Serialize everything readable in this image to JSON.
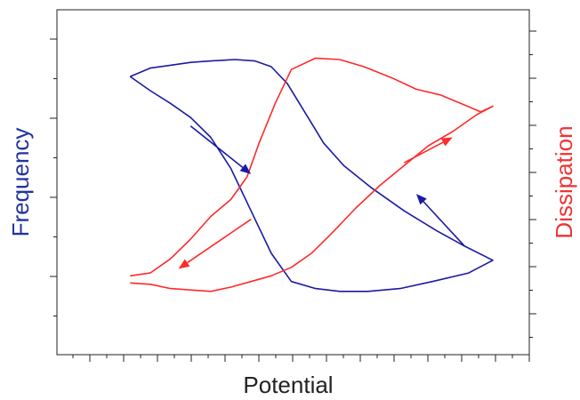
{
  "chart_data": {
    "type": "line",
    "title": "",
    "xlabel": "Potential",
    "ylabel_left": "Frequency",
    "ylabel_right": "Dissipation",
    "grid": false,
    "legend": "none",
    "xlim": [
      0,
      10
    ],
    "ylim_left": [
      0,
      10
    ],
    "ylim_right": [
      0,
      10
    ],
    "colors": {
      "frequency": "#1a1aa6",
      "dissipation": "#ff2a2a",
      "axis": "#222222",
      "frequency_label": "#2233a0",
      "dissipation_label": "#ee3333"
    },
    "series": [
      {
        "axis": "left",
        "color": "#1a1aa6",
        "x": [
          1.0,
          1.5,
          2.0,
          2.5,
          3.0,
          3.6,
          4.1,
          4.5,
          4.9,
          5.2,
          5.5,
          5.8,
          6.3,
          7.0,
          7.8,
          8.6,
          9.3,
          10.0,
          9.4,
          8.5,
          7.7,
          6.9,
          6.2,
          5.6,
          5.0,
          4.5,
          4.0,
          3.5,
          3.0,
          2.5,
          2.0,
          1.5,
          1.0
        ],
        "y": [
          8.55,
          8.85,
          8.95,
          9.05,
          9.1,
          9.15,
          9.1,
          8.9,
          8.3,
          7.6,
          6.9,
          6.2,
          5.4,
          4.6,
          3.8,
          3.1,
          2.55,
          2.05,
          1.6,
          1.3,
          1.05,
          0.95,
          0.95,
          1.05,
          1.3,
          2.3,
          3.8,
          5.3,
          6.4,
          7.1,
          7.6,
          8.05,
          8.55
        ]
      },
      {
        "axis": "right",
        "color": "#ff2a2a",
        "x": [
          1.0,
          1.5,
          2.0,
          2.5,
          3.0,
          3.5,
          3.9,
          4.2,
          4.6,
          5.0,
          5.6,
          6.2,
          6.8,
          7.5,
          8.1,
          8.7,
          9.2,
          9.7,
          10.0,
          9.6,
          9.0,
          8.4,
          7.8,
          7.2,
          6.6,
          6.0,
          5.5,
          5.0,
          4.5,
          4.0,
          3.5,
          3.0,
          2.5,
          2.0,
          1.5,
          1.0
        ],
        "y": [
          1.5,
          1.6,
          2.1,
          2.8,
          3.6,
          4.2,
          5.0,
          6.2,
          7.6,
          8.8,
          9.2,
          9.15,
          8.9,
          8.5,
          8.1,
          7.9,
          7.6,
          7.3,
          7.5,
          7.2,
          6.6,
          6.1,
          5.4,
          4.7,
          3.9,
          3.0,
          2.3,
          1.8,
          1.5,
          1.3,
          1.1,
          0.95,
          1.0,
          1.05,
          1.2,
          1.25
        ]
      }
    ],
    "arrows": [
      {
        "color": "#1a1aa6",
        "from": [
          2.5,
          6.8
        ],
        "to": [
          4.0,
          5.1
        ]
      },
      {
        "color": "#1a1aa6",
        "from": [
          9.3,
          2.55
        ],
        "to": [
          8.1,
          4.4
        ]
      },
      {
        "color": "#ff2a2a",
        "from": [
          4.0,
          3.5
        ],
        "to": [
          2.2,
          1.75
        ]
      },
      {
        "color": "#ff2a2a",
        "from": [
          7.8,
          5.5
        ],
        "to": [
          9.0,
          6.4
        ]
      }
    ]
  }
}
